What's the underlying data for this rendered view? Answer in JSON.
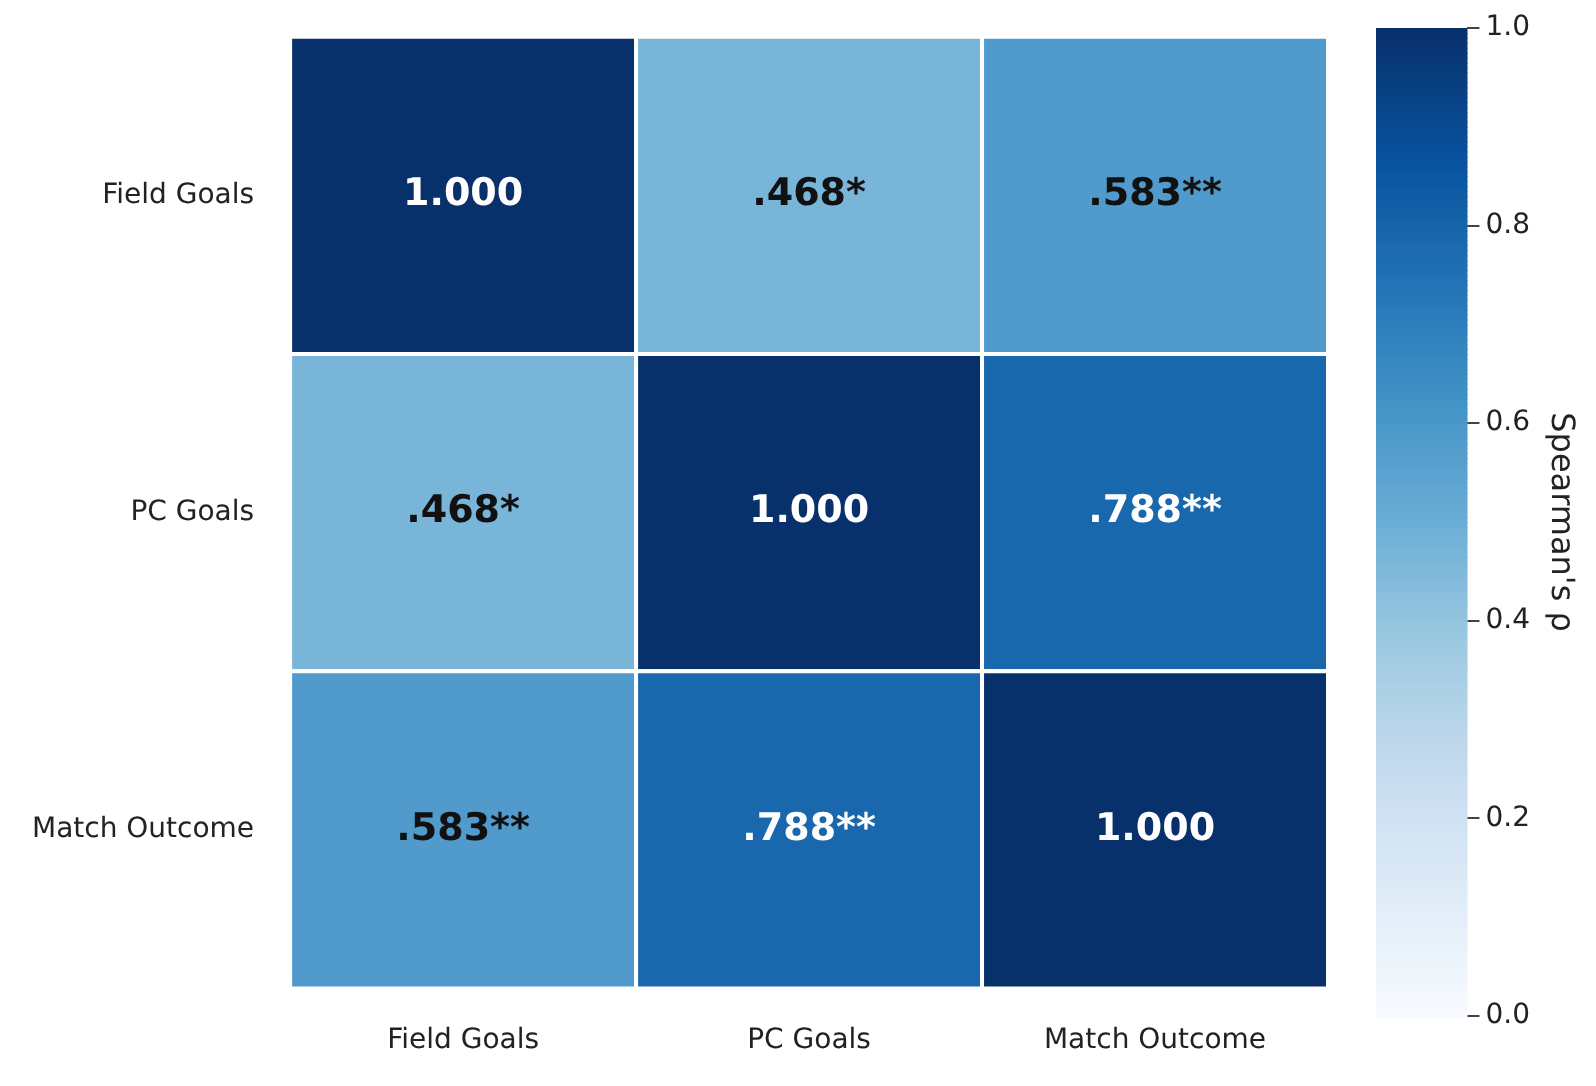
{
  "chart_data": {
    "type": "heatmap",
    "categories": [
      "Field Goals",
      "PC Goals",
      "Match Outcome"
    ],
    "y_categories": [
      "Field Goals",
      "PC Goals",
      "Match Outcome"
    ],
    "cells": [
      [
        1.0,
        0.468,
        0.583
      ],
      [
        0.468,
        1.0,
        0.788
      ],
      [
        0.583,
        0.788,
        1.0
      ]
    ],
    "cell_labels": [
      [
        "1.000",
        ".468*",
        ".583**"
      ],
      [
        ".468*",
        "1.000",
        ".788**"
      ],
      [
        ".583**",
        ".788**",
        "1.000"
      ]
    ],
    "clabel": "Spearman's ρ",
    "clim": [
      0,
      1
    ],
    "cticks": [
      {
        "value": 0,
        "label": "0.0"
      },
      {
        "value": 0.2,
        "label": "0.2"
      },
      {
        "value": 0.4,
        "label": "0.4"
      },
      {
        "value": 0.6,
        "label": "0.6"
      },
      {
        "value": 0.8,
        "label": "0.8"
      },
      {
        "value": 1,
        "label": "1.0"
      }
    ]
  }
}
